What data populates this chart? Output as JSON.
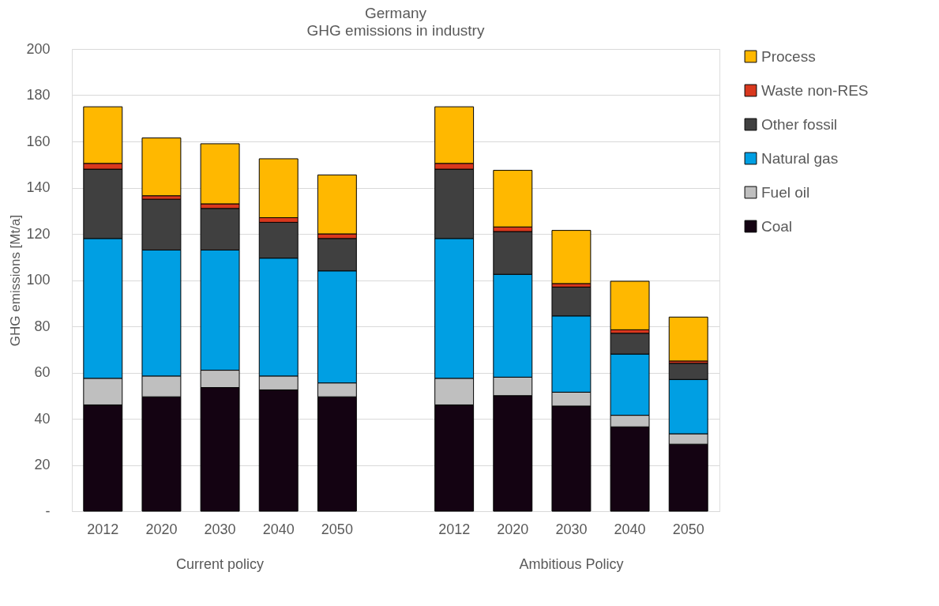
{
  "chart_data": {
    "type": "bar",
    "title": "Germany",
    "subtitle": "GHG emissions in industry",
    "ylabel": "GHG emissions [Mt/a]",
    "categories": [
      "2012",
      "2020",
      "2030",
      "2040",
      "2050",
      null,
      "2012",
      "2020",
      "2030",
      "2040",
      "2050"
    ],
    "annotations": [
      "Current policy",
      "Ambitious Policy"
    ],
    "stacked": true,
    "grid": "y",
    "legend": "right",
    "ylim": [
      0,
      200
    ],
    "yticks": [
      {
        "value": 0,
        "label": "-"
      },
      20,
      40,
      60,
      80,
      100,
      120,
      140,
      160,
      180,
      200
    ],
    "series": [
      {
        "name": "Coal",
        "color": "#140312",
        "values": [
          46,
          49.5,
          53.5,
          52.5,
          49.5,
          null,
          46,
          50,
          45.5,
          36.5,
          29
        ]
      },
      {
        "name": "Fuel oil",
        "color": "#bfbfbf",
        "values": [
          11.5,
          9,
          7.5,
          6,
          6,
          null,
          11.5,
          8,
          6,
          5,
          4.5
        ]
      },
      {
        "name": "Natural gas",
        "color": "#009fe3",
        "values": [
          60.5,
          54.5,
          52,
          51,
          48.5,
          null,
          60.5,
          44.5,
          33,
          26.5,
          23.5
        ]
      },
      {
        "name": "Other fossil",
        "color": "#404040",
        "values": [
          30,
          22,
          18,
          15.5,
          14,
          null,
          30,
          18.5,
          12.5,
          9,
          7
        ]
      },
      {
        "name": "Waste non-RES",
        "color": "#d9381e",
        "values": [
          2.5,
          1.5,
          2,
          2,
          2,
          null,
          2.5,
          2,
          1.5,
          1.5,
          1
        ]
      },
      {
        "name": "Process",
        "color": "#ffb800",
        "values": [
          24.5,
          25,
          26,
          25.5,
          25.5,
          null,
          24.5,
          24.5,
          23,
          21,
          19
        ]
      }
    ]
  }
}
